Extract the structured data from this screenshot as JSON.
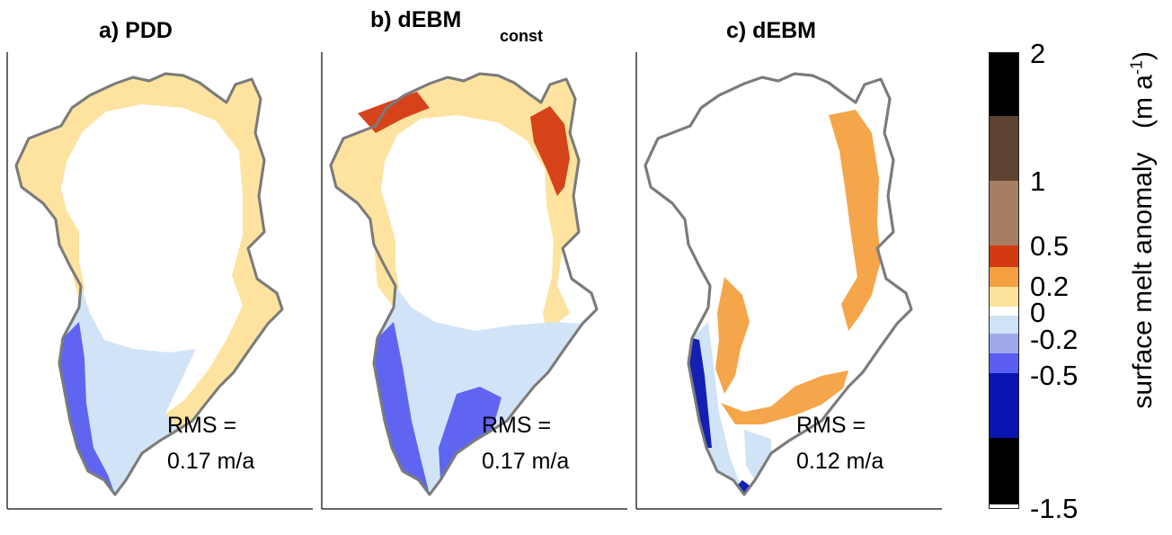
{
  "panels": [
    {
      "title": "a) PDD",
      "subscript": "",
      "rms_line1": "RMS =",
      "rms_line2": "0.17 m/a"
    },
    {
      "title": "b) dEBM",
      "subscript": "const",
      "rms_line1": "RMS =",
      "rms_line2": "0.17 m/a"
    },
    {
      "title": "c) dEBM",
      "subscript": "",
      "rms_line1": "RMS =",
      "rms_line2": "0.12 m/a"
    }
  ],
  "colorbar": {
    "label": "surface melt anomaly",
    "unit_text": "(m a",
    "unit_exp": "-1",
    "unit_close": ")",
    "ticks": [
      "2",
      "1",
      "0.5",
      "0.2",
      "0",
      "-0.2",
      "-0.5",
      "-1.5"
    ],
    "colors": [
      "#000000",
      "#5e4330",
      "#a57e63",
      "#d43a12",
      "#f4a040",
      "#fde29a",
      "#ffffff",
      "#cfe3f7",
      "#9fa9ea",
      "#5a5ef0",
      "#0a14b0",
      "#000000"
    ]
  },
  "map_colors": {
    "outline": "#7b7b7b",
    "white": "#ffffff",
    "light_yellow": "#fde29a",
    "orange": "#f4a040",
    "red": "#d43a12",
    "light_blue": "#cfe3f7",
    "mid_blue": "#9fa9ea",
    "blue": "#5a5ef0",
    "dark_blue": "#0a14b0"
  }
}
